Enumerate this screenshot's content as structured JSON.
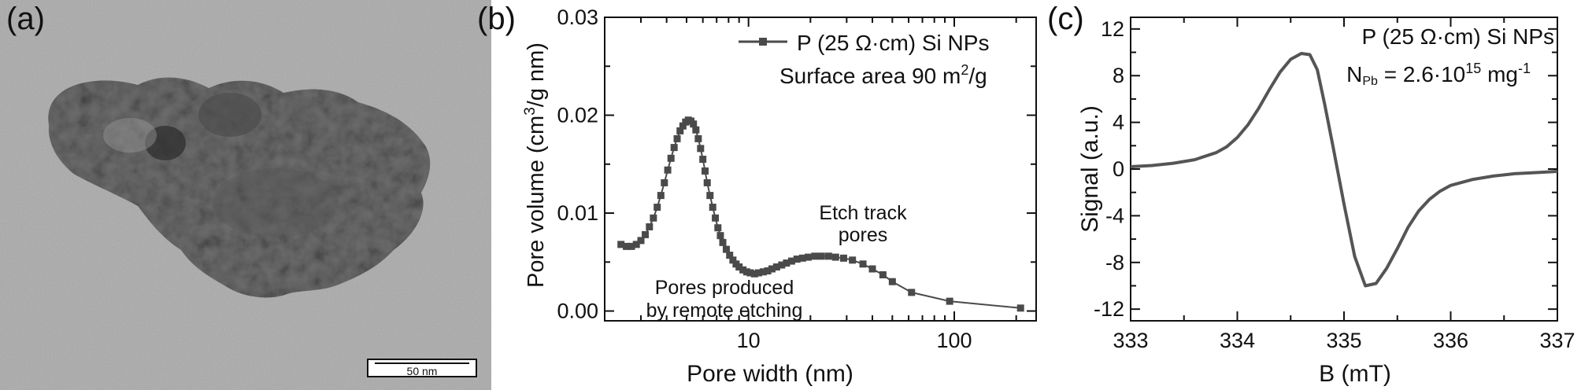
{
  "panels": {
    "a": {
      "letter": "(a)",
      "scalebar_label": "50 nm"
    },
    "b": {
      "letter": "(b)",
      "annotations": {
        "left_line1": "Pores produced",
        "left_line2": "by remote etching",
        "right_line1": "Etch track",
        "right_line2": "pores"
      }
    },
    "c": {
      "letter": "(c)",
      "legend_line2_prefix": "N",
      "legend_line2_sub": "Pb",
      "legend_line2_mid": " = 2.6·10",
      "legend_line2_sup": "15",
      "legend_line2_suffix": " mg",
      "legend_line2_sup2": "-1"
    }
  },
  "chart_data": [
    {
      "type": "line",
      "panel": "b",
      "xlabel": "Pore width (nm)",
      "ylabel_part1": "Pore volume (cm",
      "ylabel_sup": "3",
      "ylabel_part2": "/g nm)",
      "xscale": "log",
      "xlim": [
        2,
        250
      ],
      "ylim": [
        -0.001,
        0.03
      ],
      "x_ticks": [
        10,
        100
      ],
      "x_tick_labels": [
        "10",
        "100"
      ],
      "y_ticks": [
        0.0,
        0.01,
        0.02,
        0.03
      ],
      "y_tick_labels": [
        "0.00",
        "0.01",
        "0.02",
        "0.03"
      ],
      "legend_position": "top-right",
      "legend_extra_part1": "Surface area 90 m",
      "legend_extra_sup": "2",
      "legend_extra_part2": "/g",
      "series": [
        {
          "name": "P (25 Ω·cm) Si NPs",
          "color": "#4a4a4a",
          "marker": "square",
          "x": [
            2.4,
            2.55,
            2.7,
            2.85,
            3.0,
            3.15,
            3.3,
            3.45,
            3.6,
            3.75,
            3.9,
            4.05,
            4.2,
            4.35,
            4.5,
            4.65,
            4.8,
            4.95,
            5.1,
            5.25,
            5.4,
            5.55,
            5.7,
            5.85,
            6.0,
            6.15,
            6.3,
            6.5,
            6.7,
            6.9,
            7.1,
            7.3,
            7.5,
            7.8,
            8.1,
            8.4,
            8.7,
            9.0,
            9.4,
            9.8,
            10.2,
            10.7,
            11.2,
            11.8,
            12.4,
            13.0,
            13.7,
            14.5,
            15.3,
            16.2,
            17.2,
            18.3,
            19.5,
            21.0,
            22.6,
            24.5,
            26.5,
            29.0,
            32.0,
            36.0,
            40.0,
            45.0,
            50.0,
            62.0,
            95.0,
            210.0
          ],
          "y": [
            0.0068,
            0.0066,
            0.0066,
            0.0068,
            0.0072,
            0.0078,
            0.0086,
            0.0095,
            0.0106,
            0.0118,
            0.0131,
            0.0144,
            0.0156,
            0.0167,
            0.0176,
            0.0184,
            0.0189,
            0.0193,
            0.0195,
            0.0194,
            0.0191,
            0.0185,
            0.0176,
            0.0166,
            0.0155,
            0.0143,
            0.0131,
            0.0118,
            0.0106,
            0.0095,
            0.0085,
            0.0077,
            0.007,
            0.0063,
            0.0057,
            0.0052,
            0.0048,
            0.0045,
            0.0042,
            0.004,
            0.0039,
            0.0038,
            0.0039,
            0.004,
            0.0041,
            0.0043,
            0.0045,
            0.0047,
            0.0049,
            0.0051,
            0.0053,
            0.0054,
            0.0055,
            0.0056,
            0.0056,
            0.0056,
            0.0055,
            0.0054,
            0.0052,
            0.0048,
            0.0043,
            0.0037,
            0.003,
            0.0019,
            0.001,
            0.0003
          ]
        }
      ]
    },
    {
      "type": "line",
      "panel": "c",
      "xlabel": "B (mT)",
      "ylabel": "Signal (a.u.)",
      "xlim": [
        333,
        337
      ],
      "ylim": [
        -13,
        13
      ],
      "x_ticks": [
        333,
        334,
        335,
        336,
        337
      ],
      "x_tick_labels": [
        "333",
        "334",
        "335",
        "336",
        "337"
      ],
      "y_ticks": [
        -12,
        -8,
        -4,
        0,
        4,
        8,
        12
      ],
      "y_tick_labels": [
        "-12",
        "-8",
        "-4",
        "0",
        "4",
        "8",
        "12"
      ],
      "legend_position": "top-right",
      "series": [
        {
          "name": "P (25 Ω·cm) Si NPs",
          "color": "#555555",
          "x": [
            333.0,
            333.2,
            333.4,
            333.6,
            333.8,
            333.9,
            334.0,
            334.1,
            334.2,
            334.3,
            334.4,
            334.5,
            334.6,
            334.68,
            334.75,
            334.82,
            334.9,
            335.0,
            335.1,
            335.2,
            335.3,
            335.4,
            335.5,
            335.6,
            335.7,
            335.8,
            335.9,
            336.0,
            336.2,
            336.4,
            336.6,
            336.8,
            337.0
          ],
          "y": [
            0.2,
            0.3,
            0.5,
            0.8,
            1.4,
            1.9,
            2.7,
            3.8,
            5.2,
            6.8,
            8.3,
            9.4,
            9.9,
            9.8,
            8.5,
            5.5,
            1.8,
            -3.0,
            -7.5,
            -10.0,
            -9.8,
            -8.5,
            -6.8,
            -5.0,
            -3.6,
            -2.6,
            -1.9,
            -1.4,
            -0.9,
            -0.6,
            -0.4,
            -0.3,
            -0.2
          ]
        }
      ]
    }
  ]
}
